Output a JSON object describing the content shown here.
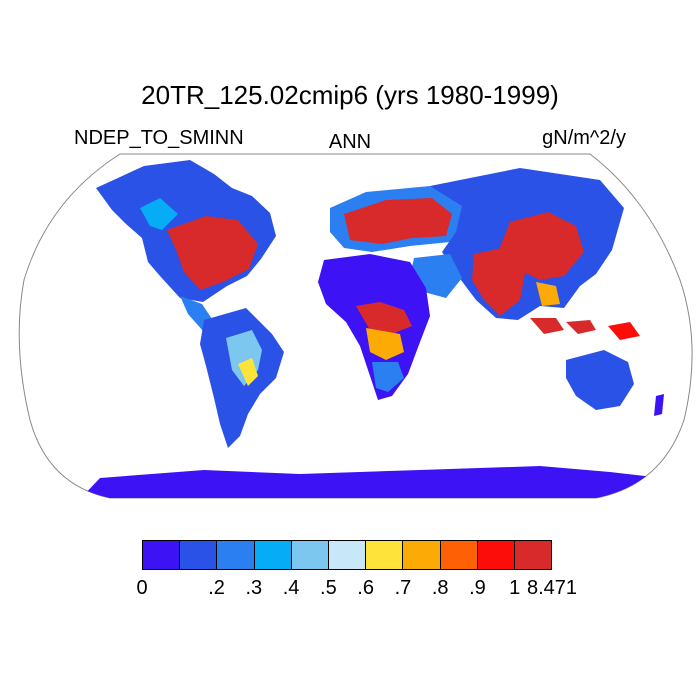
{
  "title": "20TR_125.02cmip6 (yrs 1980-1999)",
  "variable": "NDEP_TO_SMINN",
  "season": "ANN",
  "units": "gN/m^2/y",
  "projection": "Robinson-like global map",
  "colorbar": {
    "colors": [
      "#3d12f5",
      "#2a52e6",
      "#2c7ff0",
      "#06acf5",
      "#7cc7ef",
      "#c8e8f9",
      "#fee43a",
      "#fcaa05",
      "#fe6006",
      "#fc0d0a",
      "#d82a2a"
    ],
    "labels": [
      "0",
      ".2",
      ".3",
      ".4",
      ".5",
      ".6",
      ".7",
      ".8",
      ".9",
      "1",
      "8.471"
    ],
    "label_boundaries": [
      0,
      2,
      3,
      4,
      5,
      6,
      7,
      8,
      9,
      10,
      11
    ]
  },
  "chart_data": {
    "type": "heatmap",
    "title": "20TR_125.02cmip6 (yrs 1980-1999)",
    "left_label": "NDEP_TO_SMINN",
    "center_label": "ANN",
    "right_label": "gN/m^2/y",
    "color_levels": [
      0,
      0.2,
      0.3,
      0.4,
      0.5,
      0.6,
      0.7,
      0.8,
      0.9,
      1,
      8.471
    ],
    "regions": [
      {
        "name": "Eastern North America",
        "level": "high"
      },
      {
        "name": "Europe",
        "level": "high"
      },
      {
        "name": "East Asia",
        "level": "high"
      },
      {
        "name": "South Asia",
        "level": "high"
      },
      {
        "name": "Central Africa",
        "level": "high"
      },
      {
        "name": "Antarctica",
        "level": "low"
      },
      {
        "name": "Greenland",
        "level": "missing"
      }
    ]
  }
}
